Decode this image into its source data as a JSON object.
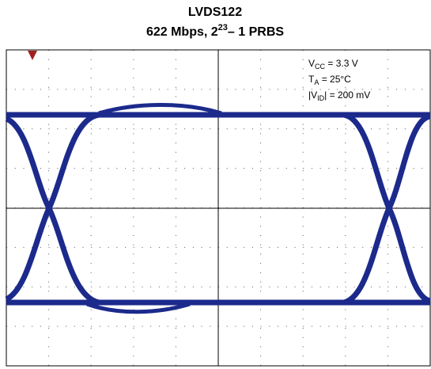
{
  "figure": {
    "title": "LVDS122",
    "subtitle": {
      "main": "622 Mbps, 2",
      "superscript": "23",
      "tail": "– 1 PRBS"
    },
    "annotations": [
      {
        "base": "V",
        "sub": "CC",
        "rest": " = 3.3 V"
      },
      {
        "base": "T",
        "sub": "A",
        "rest": " = 25°C"
      },
      {
        "base": "|V",
        "sub": "ID",
        "rest": "| = 200 mV"
      }
    ]
  }
}
